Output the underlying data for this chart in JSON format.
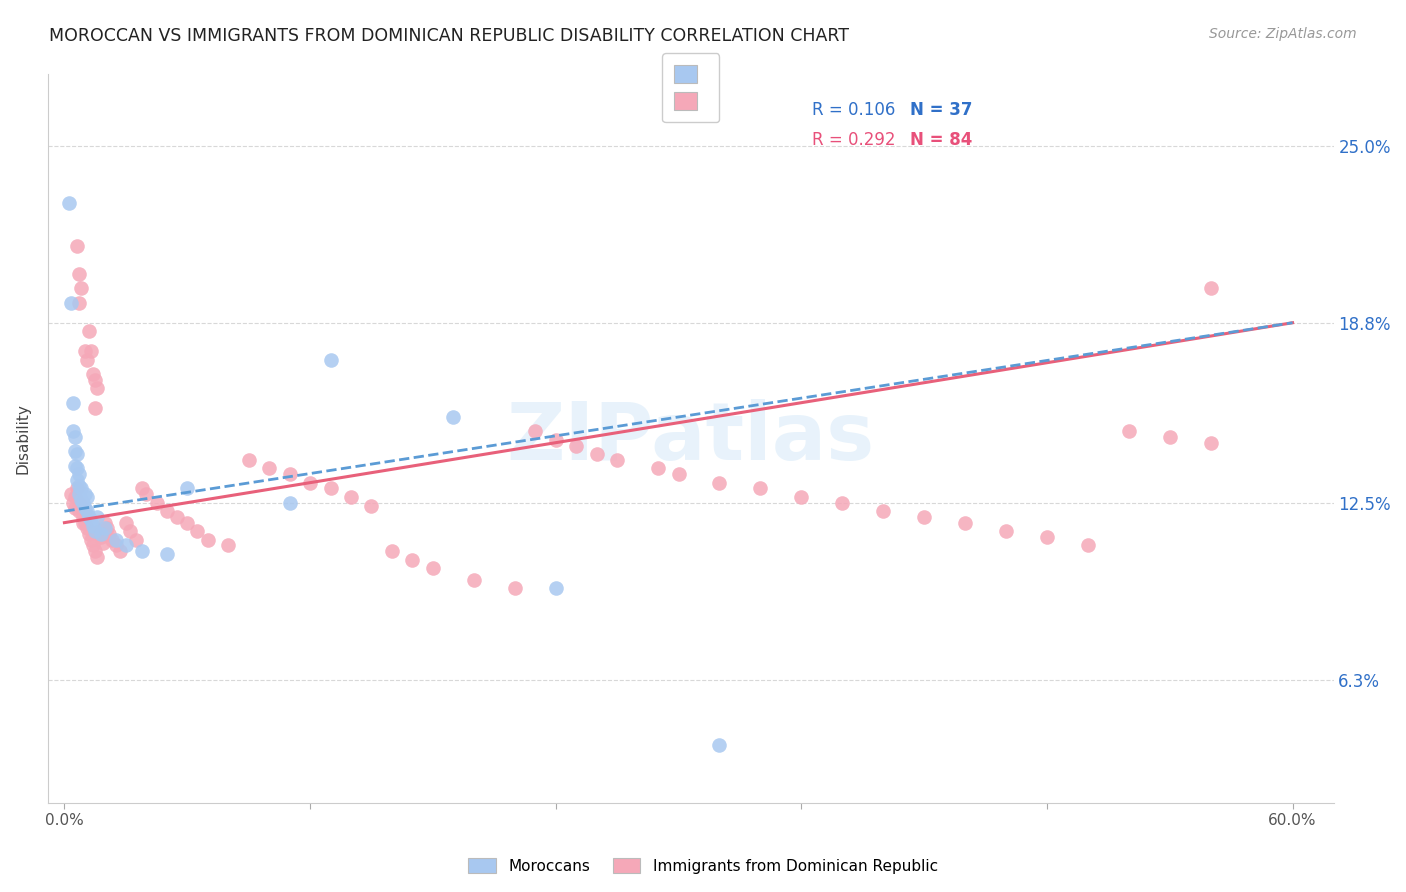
{
  "title": "MOROCCAN VS IMMIGRANTS FROM DOMINICAN REPUBLIC DISABILITY CORRELATION CHART",
  "source": "Source: ZipAtlas.com",
  "ylabel": "Disability",
  "ytick_vals": [
    0.063,
    0.125,
    0.188,
    0.25
  ],
  "ytick_labels": [
    "6.3%",
    "12.5%",
    "18.8%",
    "25.0%"
  ],
  "xmin": 0.0,
  "xmax": 0.6,
  "ymin": 0.02,
  "ymax": 0.275,
  "legend_r1": "0.106",
  "legend_n1": "37",
  "legend_r2": "0.292",
  "legend_n2": "84",
  "color_moroccan": "#a8c8f0",
  "color_dr": "#f5a8b8",
  "color_line_blue": "#5b9bd5",
  "color_line_pink": "#e8607a",
  "color_blue_text": "#3070c8",
  "color_pink_text": "#e8507a",
  "watermark_text": "ZIPatlas",
  "moroccan_x": [
    0.002,
    0.003,
    0.004,
    0.004,
    0.005,
    0.005,
    0.005,
    0.006,
    0.006,
    0.006,
    0.007,
    0.007,
    0.007,
    0.008,
    0.008,
    0.009,
    0.01,
    0.01,
    0.011,
    0.011,
    0.012,
    0.013,
    0.014,
    0.015,
    0.016,
    0.018,
    0.02,
    0.025,
    0.03,
    0.038,
    0.05,
    0.06,
    0.11,
    0.13,
    0.19,
    0.24,
    0.32
  ],
  "moroccan_y": [
    0.23,
    0.195,
    0.16,
    0.15,
    0.148,
    0.143,
    0.138,
    0.142,
    0.137,
    0.133,
    0.135,
    0.131,
    0.128,
    0.13,
    0.126,
    0.125,
    0.128,
    0.123,
    0.127,
    0.122,
    0.12,
    0.119,
    0.117,
    0.115,
    0.12,
    0.114,
    0.116,
    0.112,
    0.11,
    0.108,
    0.107,
    0.13,
    0.125,
    0.175,
    0.155,
    0.095,
    0.04
  ],
  "dr_x": [
    0.003,
    0.004,
    0.005,
    0.005,
    0.006,
    0.006,
    0.007,
    0.007,
    0.007,
    0.008,
    0.008,
    0.009,
    0.009,
    0.01,
    0.01,
    0.011,
    0.011,
    0.012,
    0.012,
    0.013,
    0.013,
    0.014,
    0.014,
    0.015,
    0.015,
    0.016,
    0.016,
    0.017,
    0.018,
    0.019,
    0.02,
    0.021,
    0.022,
    0.023,
    0.025,
    0.027,
    0.03,
    0.032,
    0.035,
    0.038,
    0.04,
    0.045,
    0.05,
    0.055,
    0.06,
    0.065,
    0.07,
    0.08,
    0.09,
    0.1,
    0.11,
    0.12,
    0.13,
    0.14,
    0.15,
    0.16,
    0.17,
    0.18,
    0.2,
    0.22,
    0.23,
    0.24,
    0.25,
    0.26,
    0.27,
    0.29,
    0.3,
    0.32,
    0.34,
    0.36,
    0.38,
    0.4,
    0.42,
    0.44,
    0.46,
    0.48,
    0.5,
    0.52,
    0.54,
    0.56,
    0.007,
    0.01,
    0.015,
    0.56
  ],
  "dr_y": [
    0.128,
    0.125,
    0.127,
    0.123,
    0.215,
    0.13,
    0.205,
    0.125,
    0.122,
    0.2,
    0.124,
    0.12,
    0.118,
    0.122,
    0.118,
    0.175,
    0.116,
    0.185,
    0.114,
    0.178,
    0.112,
    0.17,
    0.11,
    0.168,
    0.108,
    0.165,
    0.106,
    0.115,
    0.113,
    0.111,
    0.118,
    0.116,
    0.114,
    0.112,
    0.11,
    0.108,
    0.118,
    0.115,
    0.112,
    0.13,
    0.128,
    0.125,
    0.122,
    0.12,
    0.118,
    0.115,
    0.112,
    0.11,
    0.14,
    0.137,
    0.135,
    0.132,
    0.13,
    0.127,
    0.124,
    0.108,
    0.105,
    0.102,
    0.098,
    0.095,
    0.15,
    0.147,
    0.145,
    0.142,
    0.14,
    0.137,
    0.135,
    0.132,
    0.13,
    0.127,
    0.125,
    0.122,
    0.12,
    0.118,
    0.115,
    0.113,
    0.11,
    0.15,
    0.148,
    0.146,
    0.195,
    0.178,
    0.158,
    0.2
  ]
}
